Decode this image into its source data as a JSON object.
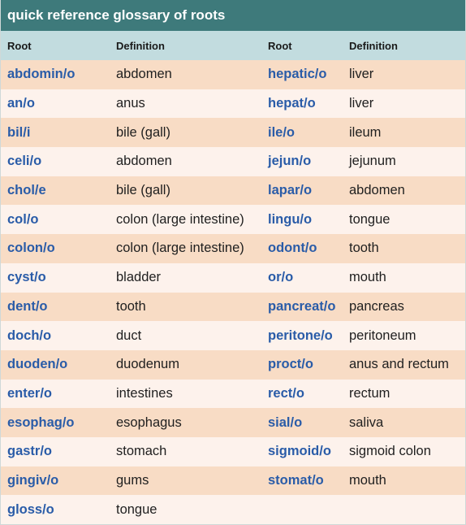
{
  "title": "quick reference glossary of roots",
  "headers": {
    "root_left": "Root",
    "def_left": "Definition",
    "root_right": "Root",
    "def_right": "Definition"
  },
  "rows": [
    {
      "root1": "abdomin/o",
      "def1": "abdomen",
      "root2": "hepatic/o",
      "def2": "liver"
    },
    {
      "root1": "an/o",
      "def1": "anus",
      "root2": "hepat/o",
      "def2": "liver"
    },
    {
      "root1": "bil/i",
      "def1": "bile (gall)",
      "root2": "ile/o",
      "def2": "ileum"
    },
    {
      "root1": "celi/o",
      "def1": "abdomen",
      "root2": "jejun/o",
      "def2": "jejunum"
    },
    {
      "root1": "chol/e",
      "def1": "bile (gall)",
      "root2": "lapar/o",
      "def2": "abdomen"
    },
    {
      "root1": "col/o",
      "def1": "colon (large intestine)",
      "root2": "lingu/o",
      "def2": "tongue"
    },
    {
      "root1": "colon/o",
      "def1": "colon (large intestine)",
      "root2": "odont/o",
      "def2": "tooth"
    },
    {
      "root1": "cyst/o",
      "def1": "bladder",
      "root2": "or/o",
      "def2": "mouth"
    },
    {
      "root1": "dent/o",
      "def1": "tooth",
      "root2": "pancreat/o",
      "def2": "pancreas"
    },
    {
      "root1": "doch/o",
      "def1": "duct",
      "root2": "peritone/o",
      "def2": "peritoneum"
    },
    {
      "root1": "duoden/o",
      "def1": "duodenum",
      "root2": "proct/o",
      "def2": "anus and rectum"
    },
    {
      "root1": "enter/o",
      "def1": "intestines",
      "root2": "rect/o",
      "def2": "rectum"
    },
    {
      "root1": "esophag/o",
      "def1": "esophagus",
      "root2": "sial/o",
      "def2": "saliva"
    },
    {
      "root1": "gastr/o",
      "def1": "stomach",
      "root2": "sigmoid/o",
      "def2": "sigmoid colon"
    },
    {
      "root1": "gingiv/o",
      "def1": "gums",
      "root2": "stomat/o",
      "def2": "mouth"
    },
    {
      "root1": "gloss/o",
      "def1": "tongue",
      "root2": "",
      "def2": ""
    }
  ]
}
